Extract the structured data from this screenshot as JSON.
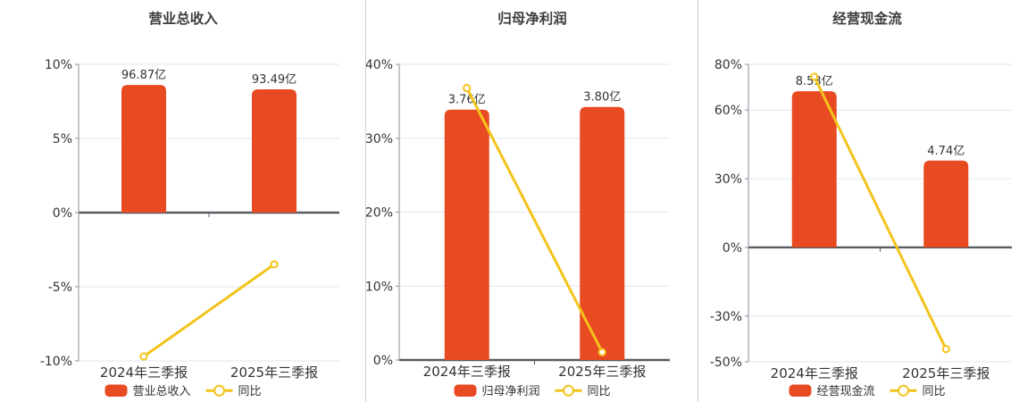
{
  "colors": {
    "background": "#ffffff",
    "bar": "#e84a21",
    "line": "#f3c31b",
    "grid": "#e0e6f2",
    "axis": "#8b8f99",
    "zero_line": "#585c63",
    "text": "#333333",
    "title": "#3d3d3d",
    "separator": "#cfcfcf",
    "marker_fill": "#ffffff"
  },
  "chart_data": [
    {
      "type": "bar-line-combo",
      "title": "营业总收入",
      "categories": [
        "2024年三季报",
        "2025年三季报"
      ],
      "bar_series": {
        "name": "营业总收入",
        "unit": "亿",
        "values": [
          96.87,
          93.49
        ],
        "labels": [
          "96.87亿",
          "93.49亿"
        ]
      },
      "line_series": {
        "name": "同比",
        "unit": "%",
        "values": [
          -9.7,
          -3.49
        ]
      },
      "y_axis": {
        "min": -10,
        "max": 10,
        "ticks": [
          10,
          5,
          0,
          -5,
          -10
        ],
        "tick_labels": [
          "10%",
          "5%",
          "0%",
          "-5%",
          "-10%"
        ]
      },
      "bar_axis_max": 112.5,
      "grid": true,
      "legend_position": "bottom"
    },
    {
      "type": "bar-line-combo",
      "title": "归母净利润",
      "categories": [
        "2024年三季报",
        "2025年三季报"
      ],
      "bar_series": {
        "name": "归母净利润",
        "unit": "亿",
        "values": [
          3.76,
          3.8
        ],
        "labels": [
          "3.76亿",
          "3.80亿"
        ]
      },
      "line_series": {
        "name": "同比",
        "unit": "%",
        "values": [
          36.8,
          1.06
        ]
      },
      "y_axis": {
        "min": 0,
        "max": 40,
        "ticks": [
          40,
          30,
          20,
          10,
          0
        ],
        "tick_labels": [
          "40%",
          "30%",
          "20%",
          "10%",
          "0%"
        ]
      },
      "bar_axis_max": 4.44,
      "grid": true,
      "legend_position": "bottom"
    },
    {
      "type": "bar-line-combo",
      "title": "经营现金流",
      "categories": [
        "2024年三季报",
        "2025年三季报"
      ],
      "bar_series": {
        "name": "经营现金流",
        "unit": "亿",
        "values": [
          8.53,
          4.74
        ],
        "labels": [
          "8.53亿",
          "4.74亿"
        ]
      },
      "line_series": {
        "name": "同比",
        "unit": "%",
        "values": [
          74.6,
          -44.43
        ]
      },
      "y_axis": {
        "min": -50,
        "max": 80,
        "ticks": [
          80,
          60,
          30,
          0,
          -30,
          -50
        ],
        "tick_labels": [
          "80%",
          "60%",
          "30%",
          "0%",
          "-30%",
          "-50%"
        ]
      },
      "bar_axis_max": 10,
      "grid": true,
      "legend_position": "bottom"
    }
  ]
}
